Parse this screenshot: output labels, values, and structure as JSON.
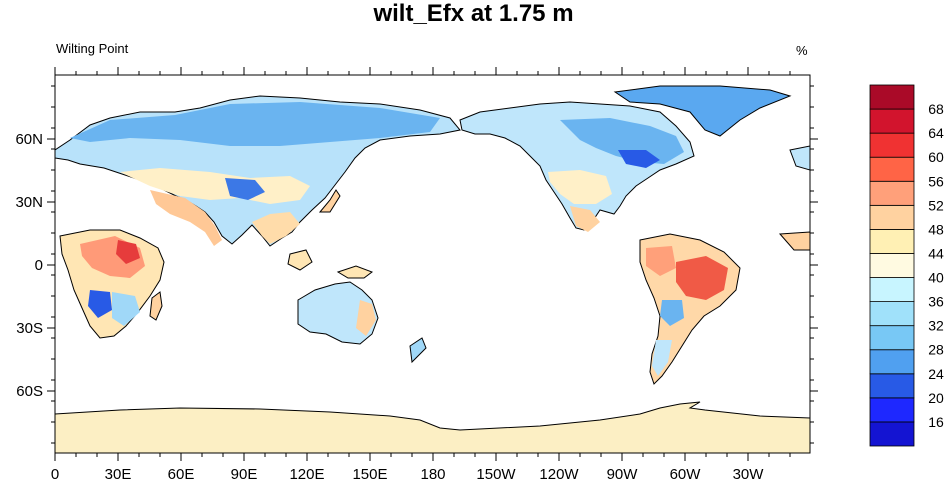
{
  "header": {
    "title": "wilt_Efx at 1.75 m",
    "left_subtitle": "Wilting Point",
    "right_subtitle": "%"
  },
  "axes": {
    "x_ticks": [
      "0",
      "30E",
      "60E",
      "90E",
      "120E",
      "150E",
      "180",
      "150W",
      "120W",
      "90W",
      "60W",
      "30W"
    ],
    "y_ticks": [
      "60N",
      "30N",
      "0",
      "30S",
      "60S"
    ]
  },
  "colorbar": {
    "labels": [
      "16",
      "20",
      "24",
      "28",
      "32",
      "36",
      "40",
      "44",
      "48",
      "52",
      "56",
      "60",
      "64",
      "68"
    ],
    "colors": [
      "#1414d2",
      "#1e28ff",
      "#285ae6",
      "#50a0f0",
      "#78c8f5",
      "#a0e1fa",
      "#c8f5ff",
      "#fffae1",
      "#fff0b4",
      "#ffd2a0",
      "#ffa07a",
      "#ff6446",
      "#f03232",
      "#d2142d",
      "#aa0a28"
    ]
  },
  "colors": {
    "ocean": "#ffffff",
    "antarctica": "#fcefc4",
    "greenland": "#5aa8f0",
    "coastline": "#000000"
  }
}
